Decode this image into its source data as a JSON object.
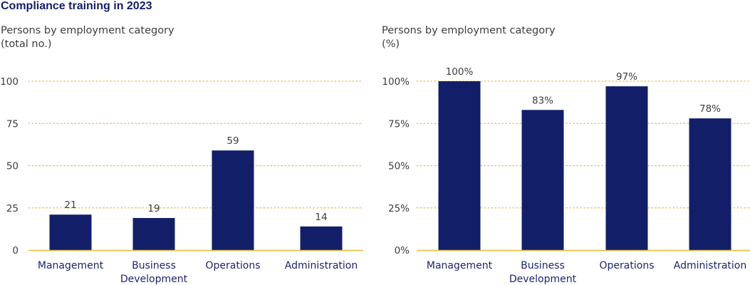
{
  "title": "Compliance training in 2023",
  "colors": {
    "bar": "#121f68",
    "grid": "#e8b93c",
    "axis": "#e8b93c",
    "title": "#15206b",
    "category_text": "#1c2470",
    "tick_text": "#3d3d3d"
  },
  "chart_data": [
    {
      "type": "bar",
      "subtitle_line1": "Persons by employment category",
      "subtitle_line2": "(total no.)",
      "categories": [
        [
          "Management"
        ],
        [
          "Business",
          "Development"
        ],
        [
          "Operations"
        ],
        [
          "Administration"
        ]
      ],
      "values": [
        21,
        19,
        59,
        14
      ],
      "value_labels": [
        "21",
        "19",
        "59",
        "14"
      ],
      "yticks": [
        0,
        25,
        50,
        75,
        100
      ],
      "ytick_labels": [
        "0",
        "25",
        "50",
        "75",
        "100"
      ],
      "ylim": [
        0,
        100
      ],
      "grid": true
    },
    {
      "type": "bar",
      "subtitle_line1": "Persons by employment category",
      "subtitle_line2": "(%)",
      "categories": [
        [
          "Management"
        ],
        [
          "Business",
          "Development"
        ],
        [
          "Operations"
        ],
        [
          "Administration"
        ]
      ],
      "values": [
        100,
        83,
        97,
        78
      ],
      "value_labels": [
        "100%",
        "83%",
        "97%",
        "78%"
      ],
      "yticks": [
        0,
        25,
        50,
        75,
        100
      ],
      "ytick_labels": [
        "0%",
        "25%",
        "50%",
        "75%",
        "100%"
      ],
      "ylim": [
        0,
        100
      ],
      "grid": true
    }
  ]
}
